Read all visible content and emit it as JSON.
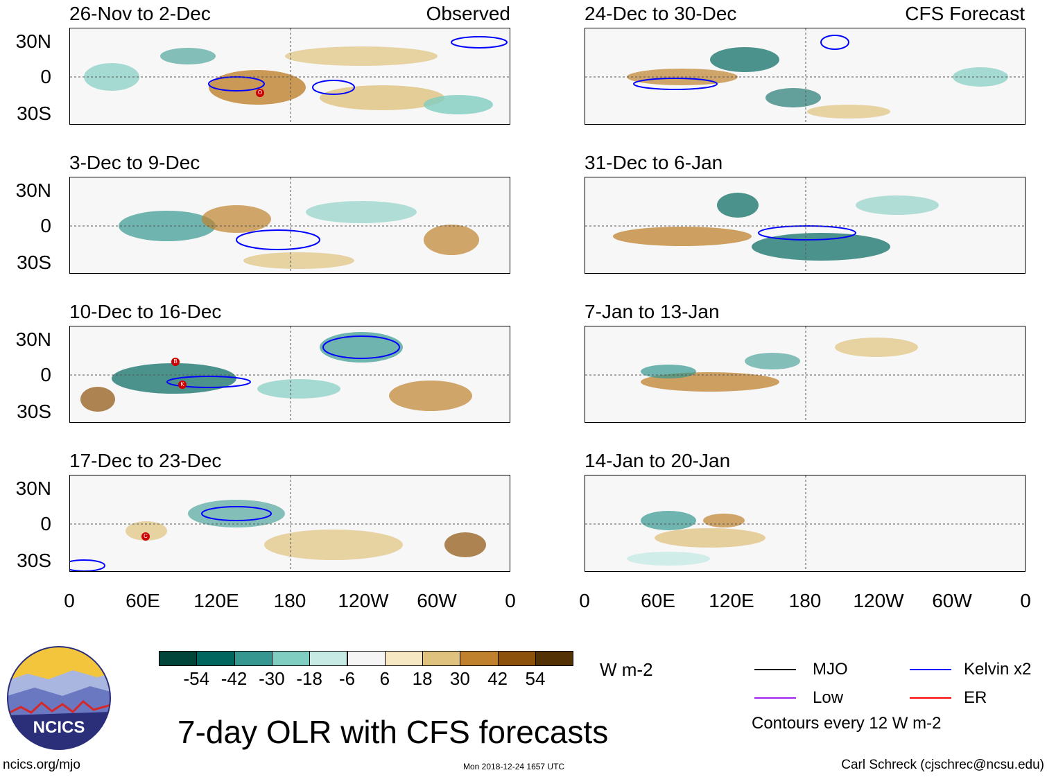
{
  "header": {
    "observed_label": "Observed",
    "forecast_label": "CFS Forecast"
  },
  "panels_left": [
    {
      "title": "26-Nov to 2-Dec"
    },
    {
      "title": "3-Dec to 9-Dec"
    },
    {
      "title": "10-Dec to 16-Dec"
    },
    {
      "title": "17-Dec to 23-Dec"
    }
  ],
  "panels_right": [
    {
      "title": "24-Dec to 30-Dec"
    },
    {
      "title": "31-Dec to 6-Jan"
    },
    {
      "title": "7-Jan to 13-Jan"
    },
    {
      "title": "14-Jan to 20-Jan"
    }
  ],
  "axes": {
    "y_labels": [
      "30N",
      "0",
      "30S"
    ],
    "x_labels": [
      "0",
      "60E",
      "120E",
      "180",
      "120W",
      "60W",
      "0"
    ]
  },
  "storm_markers": [
    {
      "panel": 0,
      "letter": "O"
    },
    {
      "panel": 2,
      "letter": "B"
    },
    {
      "panel": 2,
      "letter": "K"
    },
    {
      "panel": 3,
      "letter": "C"
    }
  ],
  "colorbar": {
    "unit": "W m-2",
    "labels": [
      "-54",
      "-42",
      "-30",
      "-18",
      "-6",
      "6",
      "18",
      "30",
      "42",
      "54"
    ],
    "colors": [
      "#01443a",
      "#01665e",
      "#35978f",
      "#80cdc1",
      "#c7eae5",
      "#f5f5f5",
      "#f6e8c3",
      "#dfc27d",
      "#bf812d",
      "#8c510a",
      "#543005"
    ]
  },
  "legend": {
    "mjo": "MJO",
    "kelvin": "Kelvin x2",
    "low": "Low",
    "er": "ER",
    "contours_note": "Contours every 12 W m-2",
    "colors": {
      "mjo": "#000000",
      "kelvin": "#0000ff",
      "low": "#a020f0",
      "er": "#ff0000"
    }
  },
  "main_title": "7-day OLR with CFS forecasts",
  "logo": {
    "text": "NCICS"
  },
  "footer": {
    "url": "ncics.org/mjo",
    "timestamp": "Mon 2018-12-24 1657 UTC",
    "credit": "Carl Schreck (cjschrec@ncsu.edu)"
  }
}
